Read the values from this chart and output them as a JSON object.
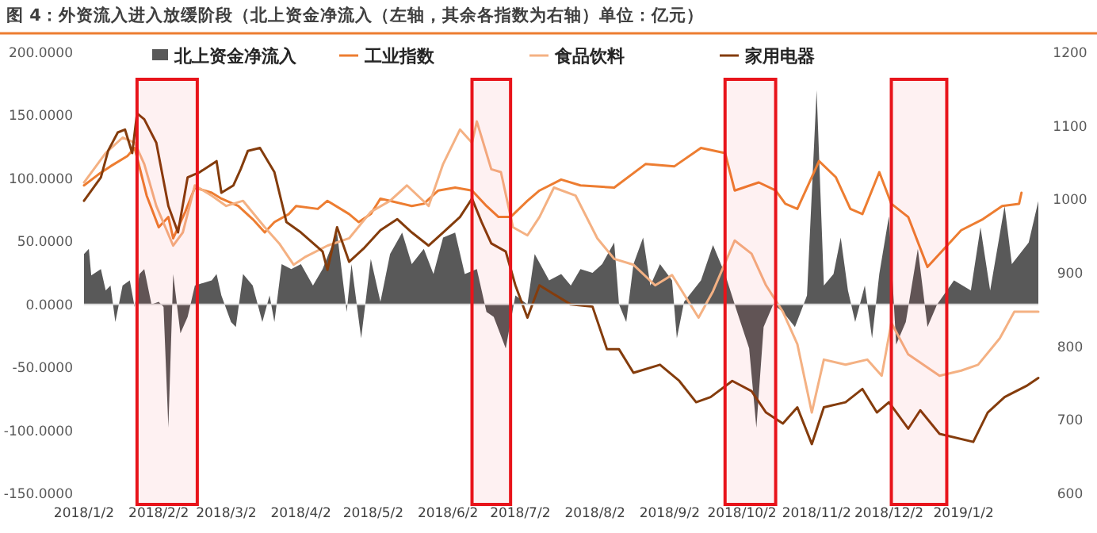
{
  "chart_data": {
    "type": "line",
    "title": "图 4：外资流入进入放缓阶段（北上资金净流入（左轴，其余各指数为右轴）单位：亿元）",
    "xlim": [
      "2018-01-02",
      "2019-02-02"
    ],
    "xticks": [
      {
        "value": "2018-01-02",
        "label": "2018/1/2"
      },
      {
        "value": "2018-02-02",
        "label": "2018/2/2"
      },
      {
        "value": "2018-03-02",
        "label": "2018/3/2"
      },
      {
        "value": "2018-04-02",
        "label": "2018/4/2"
      },
      {
        "value": "2018-05-02",
        "label": "2018/5/2"
      },
      {
        "value": "2018-06-02",
        "label": "2018/6/2"
      },
      {
        "value": "2018-07-02",
        "label": "2018/7/2"
      },
      {
        "value": "2018-08-02",
        "label": "2018/8/2"
      },
      {
        "value": "2018-09-02",
        "label": "2018/9/2"
      },
      {
        "value": "2018-10-02",
        "label": "2018/10/2"
      },
      {
        "value": "2018-11-02",
        "label": "2018/11/2"
      },
      {
        "value": "2018-12-02",
        "label": "2018/12/2"
      },
      {
        "value": "2019-01-02",
        "label": "2019/1/2"
      }
    ],
    "ylim": [
      -150,
      200
    ],
    "yticks": [
      {
        "value": -150,
        "label": "-150.0000"
      },
      {
        "value": -100,
        "label": "-100.0000"
      },
      {
        "value": -50,
        "label": "-50.0000"
      },
      {
        "value": 0,
        "label": "0.0000"
      },
      {
        "value": 50,
        "label": "50.0000"
      },
      {
        "value": 100,
        "label": "100.0000"
      },
      {
        "value": 150,
        "label": "150.0000"
      },
      {
        "value": 200,
        "label": "200.0000"
      }
    ],
    "y2lim": [
      600,
      1200
    ],
    "y2ticks": [
      600,
      700,
      800,
      900,
      1000,
      1100,
      1200
    ],
    "legend": "top",
    "bands": [
      {
        "axis": "x",
        "from": "2018-01-24",
        "to": "2018-02-18",
        "color": "#e8141b"
      },
      {
        "axis": "x",
        "from": "2018-06-12",
        "to": "2018-06-28",
        "color": "#e8141b"
      },
      {
        "axis": "x",
        "from": "2018-09-25",
        "to": "2018-10-16",
        "color": "#e8141b"
      },
      {
        "axis": "x",
        "from": "2018-12-03",
        "to": "2018-12-26",
        "color": "#e8141b"
      }
    ],
    "series": [
      {
        "name": "北上资金净流入",
        "type": "area",
        "axis": "y",
        "color": "#595959",
        "x": [
          "2018-01-02",
          "2018-01-04",
          "2018-01-05",
          "2018-01-09",
          "2018-01-11",
          "2018-01-13",
          "2018-01-15",
          "2018-01-18",
          "2018-01-21",
          "2018-01-23",
          "2018-01-25",
          "2018-01-27",
          "2018-01-30",
          "2018-02-02",
          "2018-02-04",
          "2018-02-06",
          "2018-02-08",
          "2018-02-11",
          "2018-02-14",
          "2018-02-17",
          "2018-02-24",
          "2018-02-26",
          "2018-02-28",
          "2018-03-04",
          "2018-03-06",
          "2018-03-09",
          "2018-03-13",
          "2018-03-17",
          "2018-03-20",
          "2018-03-22",
          "2018-03-25",
          "2018-03-29",
          "2018-04-02",
          "2018-04-07",
          "2018-04-11",
          "2018-04-17",
          "2018-04-21",
          "2018-04-23",
          "2018-04-27",
          "2018-05-01",
          "2018-05-05",
          "2018-05-09",
          "2018-05-14",
          "2018-05-18",
          "2018-05-23",
          "2018-05-27",
          "2018-05-31",
          "2018-06-05",
          "2018-06-09",
          "2018-06-14",
          "2018-06-18",
          "2018-06-21",
          "2018-06-26",
          "2018-06-30",
          "2018-07-05",
          "2018-07-08",
          "2018-07-14",
          "2018-07-19",
          "2018-07-23",
          "2018-07-27",
          "2018-08-01",
          "2018-08-05",
          "2018-08-10",
          "2018-08-12",
          "2018-08-15",
          "2018-08-18",
          "2018-08-22",
          "2018-08-25",
          "2018-08-29",
          "2018-09-03",
          "2018-09-05",
          "2018-09-08",
          "2018-09-15",
          "2018-09-20",
          "2018-09-25",
          "2018-09-30",
          "2018-10-05",
          "2018-10-08",
          "2018-10-11",
          "2018-10-15",
          "2018-10-19",
          "2018-10-24",
          "2018-10-29",
          "2018-11-02",
          "2018-11-05",
          "2018-11-09",
          "2018-11-12",
          "2018-11-15",
          "2018-11-18",
          "2018-11-22",
          "2018-11-25",
          "2018-11-28",
          "2018-12-02",
          "2018-12-05",
          "2018-12-09",
          "2018-12-14",
          "2018-12-18",
          "2018-12-22",
          "2018-12-29",
          "2019-01-05",
          "2019-01-09",
          "2019-01-13",
          "2019-01-19",
          "2019-01-22",
          "2019-01-29",
          "2019-02-02"
        ],
        "values": [
          40,
          44,
          23,
          28,
          11,
          15,
          -14,
          15,
          19,
          -2,
          24,
          28,
          0,
          2,
          -2,
          -98,
          24,
          -23,
          -10,
          15,
          19,
          24,
          7,
          -14,
          -18,
          24,
          15,
          -14,
          7,
          -14,
          32,
          28,
          32,
          15,
          28,
          57,
          -6,
          32,
          -27,
          36,
          2,
          40,
          57,
          32,
          44,
          24,
          53,
          57,
          24,
          28,
          -6,
          -10,
          -35,
          7,
          0,
          40,
          19,
          24,
          15,
          28,
          25,
          32,
          49,
          0,
          -14,
          32,
          53,
          15,
          32,
          19,
          -27,
          2,
          19,
          47,
          24,
          -6,
          -35,
          -98,
          -18,
          0,
          -6,
          -18,
          7,
          170,
          15,
          24,
          53,
          11,
          -14,
          15,
          -27,
          24,
          70,
          -32,
          -14,
          44,
          -18,
          0,
          19,
          11,
          61,
          11,
          78,
          32,
          49,
          82
        ]
      },
      {
        "name": "工业指数",
        "axis": "y2",
        "color": "#ed7d31",
        "x": [
          "2018-01-02",
          "2018-01-08",
          "2018-01-13",
          "2018-01-20",
          "2018-01-23",
          "2018-01-28",
          "2018-02-02",
          "2018-02-06",
          "2018-02-08",
          "2018-02-13",
          "2018-02-17",
          "2018-02-24",
          "2018-02-28",
          "2018-03-07",
          "2018-03-13",
          "2018-03-18",
          "2018-03-22",
          "2018-03-28",
          "2018-03-31",
          "2018-04-09",
          "2018-04-13",
          "2018-04-22",
          "2018-04-26",
          "2018-05-01",
          "2018-05-05",
          "2018-05-09",
          "2018-05-18",
          "2018-05-23",
          "2018-05-29",
          "2018-06-05",
          "2018-06-12",
          "2018-06-18",
          "2018-06-23",
          "2018-06-28",
          "2018-07-05",
          "2018-07-10",
          "2018-07-19",
          "2018-07-27",
          "2018-08-10",
          "2018-08-23",
          "2018-09-04",
          "2018-09-15",
          "2018-09-25",
          "2018-09-29",
          "2018-10-09",
          "2018-10-16",
          "2018-10-20",
          "2018-10-25",
          "2018-11-03",
          "2018-11-10",
          "2018-11-16",
          "2018-11-21",
          "2018-11-28",
          "2018-12-03",
          "2018-12-10",
          "2018-12-18",
          "2018-12-23",
          "2019-01-01",
          "2019-01-10",
          "2019-01-18",
          "2019-01-25",
          "2019-01-26"
        ],
        "values": [
          1019,
          1034,
          1045,
          1059,
          1070,
          1005,
          962,
          976,
          947,
          983,
          1016,
          1009,
          1001,
          991,
          973,
          955,
          969,
          980,
          991,
          987,
          998,
          980,
          969,
          980,
          1001,
          998,
          991,
          994,
          1012,
          1016,
          1012,
          991,
          976,
          976,
          998,
          1012,
          1027,
          1019,
          1016,
          1048,
          1045,
          1070,
          1063,
          1012,
          1023,
          1012,
          994,
          987,
          1052,
          1030,
          987,
          980,
          1037,
          994,
          976,
          908,
          926,
          958,
          973,
          991,
          994,
          1009
        ]
      },
      {
        "name": "食品饮料",
        "axis": "y2",
        "color": "#f4b183",
        "x": [
          "2018-01-02",
          "2018-01-11",
          "2018-01-18",
          "2018-01-23",
          "2018-01-27",
          "2018-02-01",
          "2018-02-08",
          "2018-02-12",
          "2018-02-17",
          "2018-02-24",
          "2018-03-02",
          "2018-03-09",
          "2018-03-18",
          "2018-03-24",
          "2018-03-30",
          "2018-04-04",
          "2018-04-13",
          "2018-04-22",
          "2018-05-01",
          "2018-05-09",
          "2018-05-16",
          "2018-05-25",
          "2018-05-31",
          "2018-06-07",
          "2018-06-12",
          "2018-06-14",
          "2018-06-20",
          "2018-06-24",
          "2018-06-29",
          "2018-07-05",
          "2018-07-10",
          "2018-07-16",
          "2018-07-25",
          "2018-08-03",
          "2018-08-10",
          "2018-08-18",
          "2018-08-27",
          "2018-09-03",
          "2018-09-14",
          "2018-09-20",
          "2018-09-29",
          "2018-10-06",
          "2018-10-12",
          "2018-10-19",
          "2018-10-25",
          "2018-10-31",
          "2018-11-05",
          "2018-11-14",
          "2018-11-23",
          "2018-11-29",
          "2018-12-03",
          "2018-12-10",
          "2018-12-23",
          "2019-01-01",
          "2019-01-08",
          "2019-01-17",
          "2019-01-23",
          "2019-02-02"
        ],
        "values": [
          1023,
          1063,
          1084,
          1077,
          1048,
          991,
          937,
          955,
          1019,
          1005,
          991,
          998,
          962,
          940,
          911,
          922,
          937,
          947,
          983,
          998,
          1019,
          991,
          1048,
          1095,
          1077,
          1106,
          1041,
          1037,
          962,
          951,
          976,
          1016,
          1005,
          947,
          919,
          911,
          883,
          897,
          839,
          875,
          944,
          926,
          883,
          847,
          803,
          710,
          782,
          775,
          782,
          760,
          832,
          789,
          760,
          767,
          775,
          811,
          847,
          847
        ]
      },
      {
        "name": "家用电器",
        "axis": "y2",
        "color": "#843c0c",
        "x": [
          "2018-01-02",
          "2018-01-09",
          "2018-01-12",
          "2018-01-16",
          "2018-01-19",
          "2018-01-22",
          "2018-01-24",
          "2018-01-27",
          "2018-02-01",
          "2018-02-06",
          "2018-02-10",
          "2018-02-14",
          "2018-02-19",
          "2018-02-26",
          "2018-02-28",
          "2018-03-05",
          "2018-03-08",
          "2018-03-11",
          "2018-03-16",
          "2018-03-22",
          "2018-03-27",
          "2018-04-02",
          "2018-04-11",
          "2018-04-13",
          "2018-04-17",
          "2018-04-22",
          "2018-04-28",
          "2018-05-05",
          "2018-05-12",
          "2018-05-18",
          "2018-05-25",
          "2018-05-31",
          "2018-06-07",
          "2018-06-12",
          "2018-06-16",
          "2018-06-20",
          "2018-06-26",
          "2018-06-30",
          "2018-07-05",
          "2018-07-10",
          "2018-07-14",
          "2018-07-23",
          "2018-08-01",
          "2018-08-07",
          "2018-08-12",
          "2018-08-18",
          "2018-08-29",
          "2018-09-06",
          "2018-09-13",
          "2018-09-19",
          "2018-09-28",
          "2018-10-06",
          "2018-10-12",
          "2018-10-19",
          "2018-10-25",
          "2018-10-31",
          "2018-11-05",
          "2018-11-14",
          "2018-11-21",
          "2018-11-27",
          "2018-12-02",
          "2018-12-10",
          "2018-12-15",
          "2018-12-23",
          "2019-01-06",
          "2019-01-12",
          "2019-01-19",
          "2019-01-28",
          "2019-02-02"
        ],
        "values": [
          998,
          1030,
          1066,
          1091,
          1095,
          1063,
          1117,
          1109,
          1077,
          991,
          955,
          1030,
          1037,
          1052,
          1009,
          1019,
          1041,
          1066,
          1070,
          1037,
          969,
          955,
          929,
          904,
          962,
          915,
          933,
          958,
          973,
          955,
          937,
          955,
          976,
          1001,
          969,
          940,
          929,
          883,
          839,
          883,
          875,
          857,
          854,
          796,
          796,
          764,
          775,
          753,
          724,
          731,
          753,
          739,
          710,
          695,
          717,
          667,
          717,
          724,
          742,
          710,
          724,
          688,
          713,
          681,
          670,
          710,
          731,
          746,
          757
        ]
      }
    ]
  }
}
